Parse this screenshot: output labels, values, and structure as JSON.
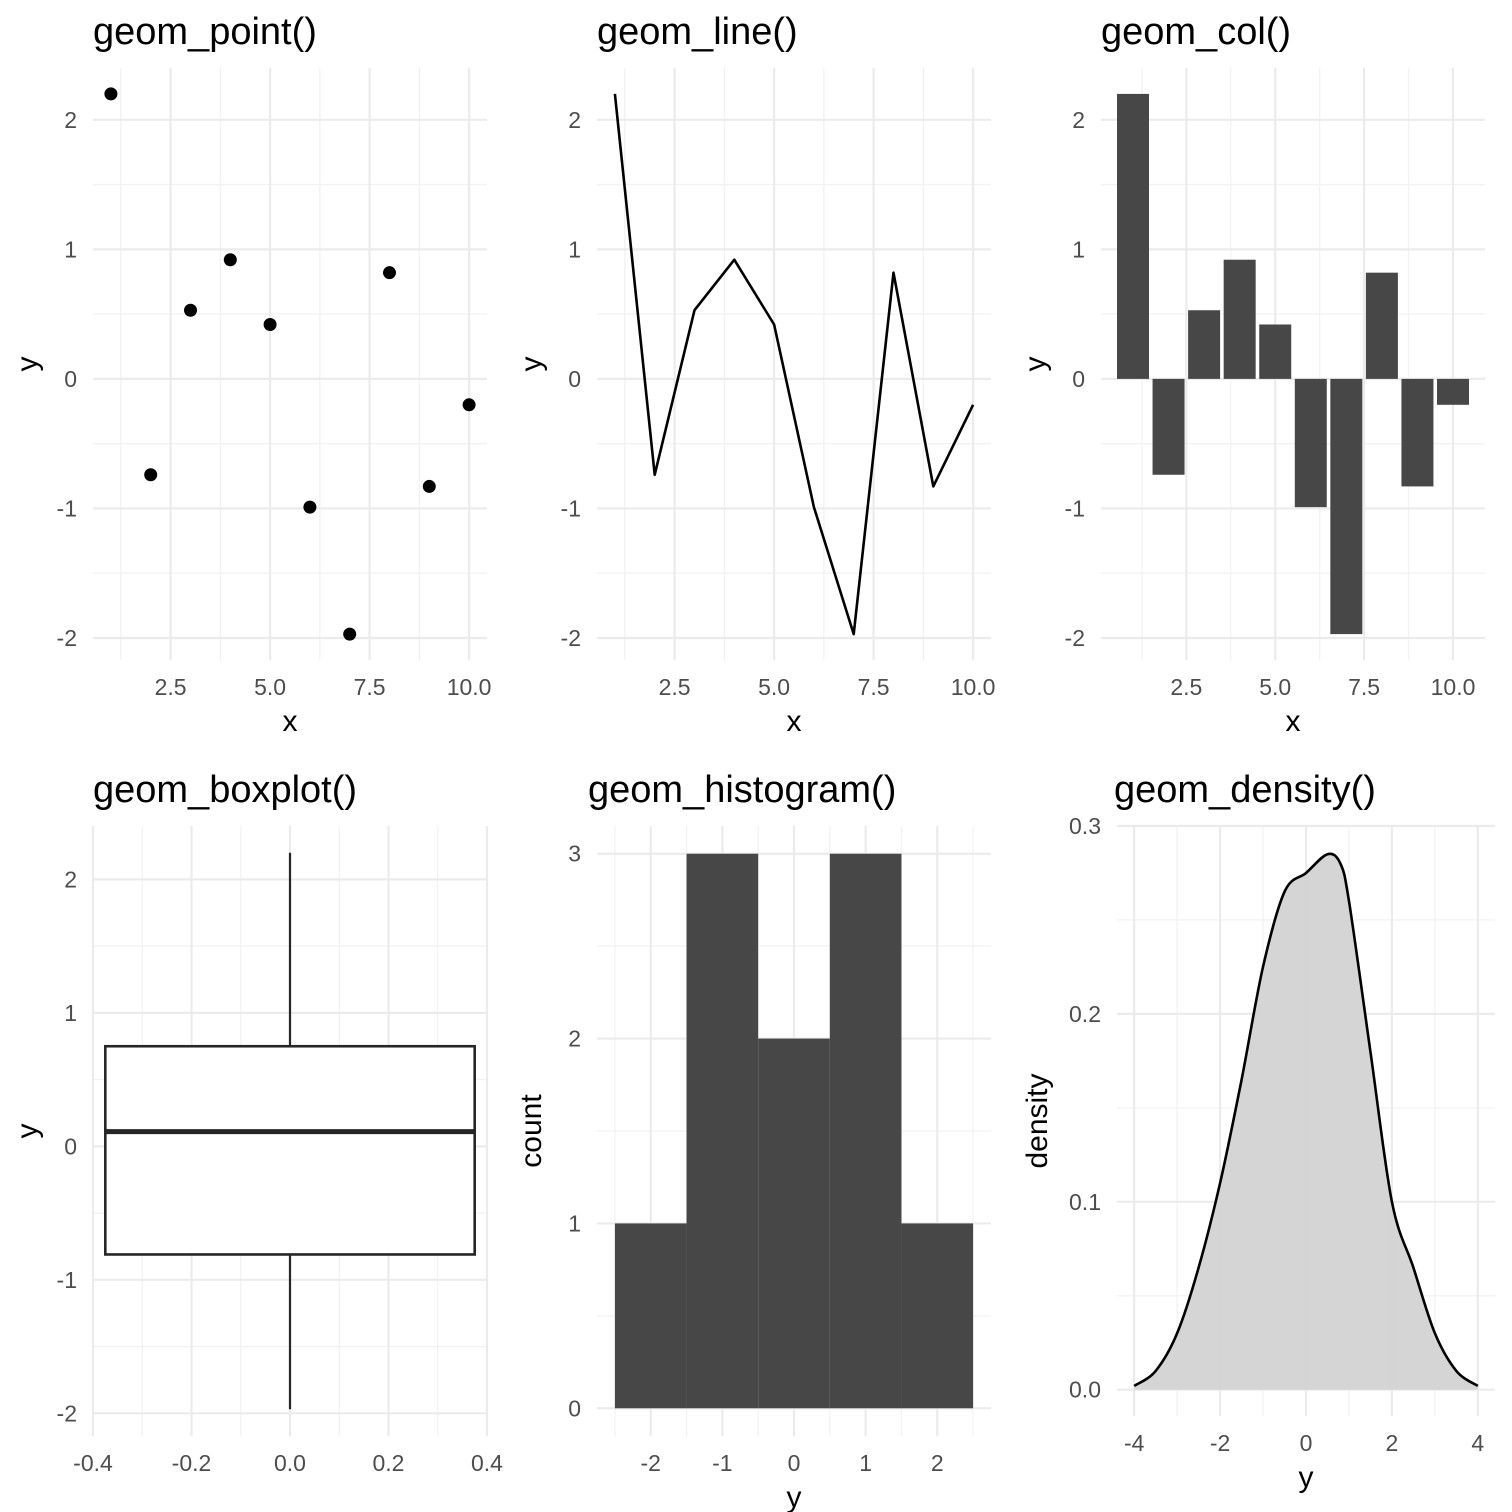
{
  "colors": {
    "background": "#ffffff",
    "grid_major": "#ebebeb",
    "grid_minor": "#f2f2f2",
    "bar_fill": "#474747",
    "point": "#000000",
    "line": "#000000",
    "box_stroke": "#262626",
    "density_fill": "#d3d3d3",
    "tick_text": "#4d4d4d",
    "title_text": "#000000"
  },
  "chart_data": [
    {
      "type": "scatter",
      "title": "geom_point()",
      "xlabel": "x",
      "ylabel": "y",
      "x": [
        1,
        2,
        3,
        4,
        5,
        6,
        7,
        8,
        9,
        10
      ],
      "y": [
        2.2,
        -0.74,
        0.53,
        0.92,
        0.42,
        -0.99,
        -1.97,
        0.82,
        -0.83,
        -0.2
      ],
      "xlim": [
        0.55,
        10.45
      ],
      "ylim": [
        -2.17,
        2.4
      ],
      "xticks": [
        2.5,
        5.0,
        7.5,
        10.0
      ],
      "xtick_labels": [
        "2.5",
        "5.0",
        "7.5",
        "10.0"
      ],
      "yticks": [
        -2,
        -1,
        0,
        1,
        2
      ],
      "ytick_labels": [
        "-2",
        "-1",
        "0",
        "1",
        "2"
      ],
      "grid": true
    },
    {
      "type": "line",
      "title": "geom_line()",
      "xlabel": "x",
      "ylabel": "y",
      "x": [
        1,
        2,
        3,
        4,
        5,
        6,
        7,
        8,
        9,
        10
      ],
      "y": [
        2.2,
        -0.74,
        0.53,
        0.92,
        0.42,
        -0.99,
        -1.97,
        0.82,
        -0.83,
        -0.2
      ],
      "xlim": [
        0.55,
        10.45
      ],
      "ylim": [
        -2.17,
        2.4
      ],
      "xticks": [
        2.5,
        5.0,
        7.5,
        10.0
      ],
      "xtick_labels": [
        "2.5",
        "5.0",
        "7.5",
        "10.0"
      ],
      "yticks": [
        -2,
        -1,
        0,
        1,
        2
      ],
      "ytick_labels": [
        "-2",
        "-1",
        "0",
        "1",
        "2"
      ],
      "grid": true
    },
    {
      "type": "bar",
      "title": "geom_col()",
      "xlabel": "x",
      "ylabel": "y",
      "x": [
        1,
        2,
        3,
        4,
        5,
        6,
        7,
        8,
        9,
        10
      ],
      "values": [
        2.2,
        -0.74,
        0.53,
        0.92,
        0.42,
        -0.99,
        -1.97,
        0.82,
        -0.83,
        -0.2
      ],
      "bar_width": 0.9,
      "xlim": [
        0.1,
        10.9
      ],
      "ylim": [
        -2.17,
        2.4
      ],
      "xticks": [
        2.5,
        5.0,
        7.5,
        10.0
      ],
      "xtick_labels": [
        "2.5",
        "5.0",
        "7.5",
        "10.0"
      ],
      "yticks": [
        -2,
        -1,
        0,
        1,
        2
      ],
      "ytick_labels": [
        "-2",
        "-1",
        "0",
        "1",
        "2"
      ],
      "grid": true
    },
    {
      "type": "boxplot",
      "title": "geom_boxplot()",
      "xlabel": "",
      "ylabel": "y",
      "box": {
        "x_min": -0.375,
        "x_max": 0.375,
        "whisker_low": -1.97,
        "q1": -0.81,
        "median": 0.11,
        "q3": 0.75,
        "whisker_high": 2.2
      },
      "xlim": [
        -0.4,
        0.4
      ],
      "ylim": [
        -2.17,
        2.4
      ],
      "xticks": [
        -0.4,
        -0.2,
        0.0,
        0.2,
        0.4
      ],
      "xtick_labels": [
        "-0.4",
        "-0.2",
        "0.0",
        "0.2",
        "0.4"
      ],
      "yticks": [
        -2,
        -1,
        0,
        1,
        2
      ],
      "ytick_labels": [
        "-2",
        "-1",
        "0",
        "1",
        "2"
      ],
      "grid": true
    },
    {
      "type": "histogram",
      "title": "geom_histogram()",
      "xlabel": "y",
      "ylabel": "count",
      "bins": [
        {
          "from": -2.5,
          "to": -1.5,
          "count": 1
        },
        {
          "from": -1.5,
          "to": -0.5,
          "count": 3
        },
        {
          "from": -0.5,
          "to": 0.5,
          "count": 2
        },
        {
          "from": 0.5,
          "to": 1.5,
          "count": 3
        },
        {
          "from": 1.5,
          "to": 2.5,
          "count": 1
        }
      ],
      "xlim": [
        -2.75,
        2.75
      ],
      "ylim": [
        -0.15,
        3.15
      ],
      "xticks": [
        -2,
        -1,
        0,
        1,
        2
      ],
      "xtick_labels": [
        "-2",
        "-1",
        "0",
        "1",
        "2"
      ],
      "yticks": [
        0,
        1,
        2,
        3
      ],
      "ytick_labels": [
        "0",
        "1",
        "2",
        "3"
      ],
      "grid": true
    },
    {
      "type": "area",
      "title": "geom_density()",
      "xlabel": "y",
      "ylabel": "density",
      "x": [
        -4.0,
        -3.5,
        -3.0,
        -2.5,
        -2.0,
        -1.5,
        -1.0,
        -0.5,
        0.0,
        0.5,
        0.8,
        1.0,
        1.5,
        2.0,
        2.5,
        3.0,
        3.5,
        4.0
      ],
      "y": [
        0.002,
        0.01,
        0.03,
        0.065,
        0.11,
        0.165,
        0.225,
        0.265,
        0.275,
        0.285,
        0.28,
        0.26,
        0.18,
        0.1,
        0.065,
        0.03,
        0.01,
        0.002
      ],
      "xlim": [
        -4.4,
        4.4
      ],
      "ylim": [
        -0.014,
        0.3
      ],
      "xticks": [
        -4,
        -2,
        0,
        2,
        4
      ],
      "xtick_labels": [
        "-4",
        "-2",
        "0",
        "2",
        "4"
      ],
      "yticks": [
        0.0,
        0.1,
        0.2,
        0.3
      ],
      "ytick_labels": [
        "0.0",
        "0.1",
        "0.2",
        "0.3"
      ],
      "grid": true
    }
  ]
}
